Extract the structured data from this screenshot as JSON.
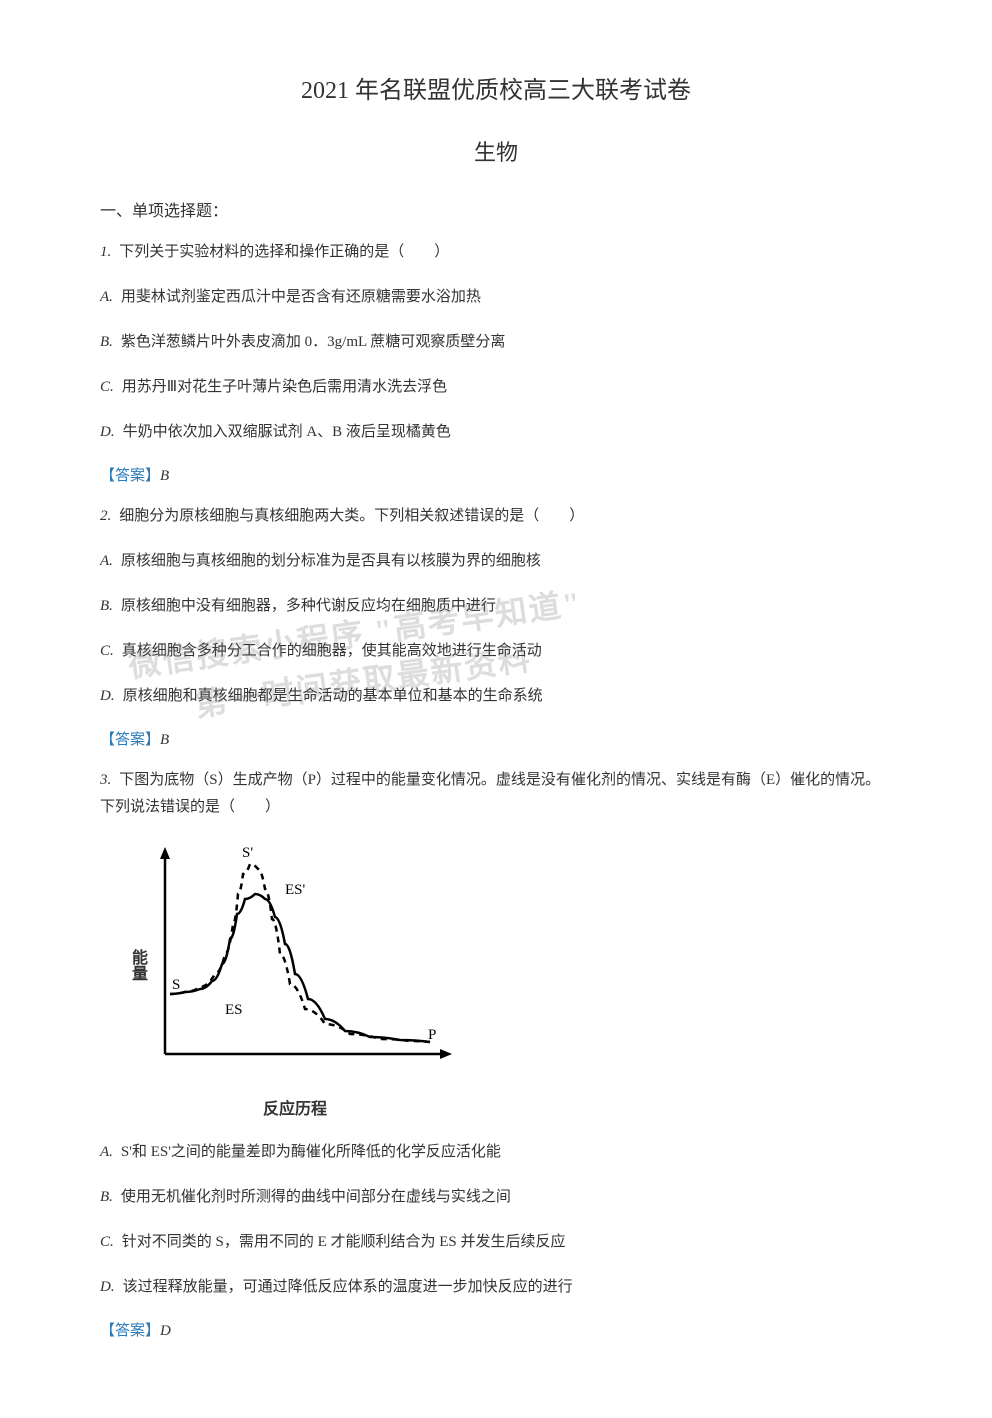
{
  "title": "2021 年名联盟优质校高三大联考试卷",
  "subject": "生物",
  "section_heading": "一、单项选择题：",
  "q1": {
    "num": "1.",
    "text": "下列关于实验材料的选择和操作正确的是（　　）",
    "optA_label": "A.",
    "optA": "用斐林试剂鉴定西瓜汁中是否含有还原糖需要水浴加热",
    "optB_label": "B.",
    "optB": "紫色洋葱鳞片叶外表皮滴加 0．3g/mL 蔗糖可观察质壁分离",
    "optC_label": "C.",
    "optC": "用苏丹Ⅲ对花生子叶薄片染色后需用清水洗去浮色",
    "optD_label": "D.",
    "optD": "牛奶中依次加入双缩脲试剂 A、B 液后呈现橘黄色",
    "answer_label": "【答案】",
    "answer": "B"
  },
  "q2": {
    "num": "2.",
    "text": "细胞分为原核细胞与真核细胞两大类。下列相关叙述错误的是（　　）",
    "optA_label": "A.",
    "optA": "原核细胞与真核细胞的划分标准为是否具有以核膜为界的细胞核",
    "optB_label": "B.",
    "optB": "原核细胞中没有细胞器，多种代谢反应均在细胞质中进行",
    "optC_label": "C.",
    "optC": "真核细胞含多种分工合作的细胞器，使其能高效地进行生命活动",
    "optD_label": "D.",
    "optD": "原核细胞和真核细胞都是生命活动的基本单位和基本的生命系统",
    "answer_label": "【答案】",
    "answer": "B"
  },
  "q3": {
    "num": "3.",
    "text": "下图为底物（S）生成产物（P）过程中的能量变化情况。虚线是没有催化剂的情况、实线是有酶（E）催化的情况。下列说法错误的是（　　）",
    "optA_label": "A.",
    "optA": "S'和 ES'之间的能量差即为酶催化所降低的化学反应活化能",
    "optB_label": "B.",
    "optB": "使用无机催化剂时所测得的曲线中间部分在虚线与实线之间",
    "optC_label": "C.",
    "optC": "针对不同类的 S，需用不同的 E 才能顺利结合为 ES 并发生后续反应",
    "optD_label": "D.",
    "optD": "该过程释放能量，可通过降低反应体系的温度进一步加快反应的进行",
    "answer_label": "【答案】",
    "answer": "D",
    "chart": {
      "type": "line",
      "xlabel": "反应历程",
      "ylabel": "能量",
      "background_color": "#ffffff",
      "axis_color": "#000000",
      "line_width": 2.5,
      "label_S": "S",
      "label_Sprime": "S'",
      "label_ES": "ES",
      "label_ESprime": "ES'",
      "label_P": "P",
      "dashed_curve": {
        "stroke": "#000000",
        "dash": "6,5",
        "points": [
          [
            40,
            155
          ],
          [
            55,
            153
          ],
          [
            70,
            148
          ],
          [
            85,
            135
          ],
          [
            95,
            115
          ],
          [
            103,
            85
          ],
          [
            108,
            55
          ],
          [
            113,
            35
          ],
          [
            120,
            25
          ],
          [
            128,
            30
          ],
          [
            135,
            50
          ],
          [
            142,
            80
          ],
          [
            150,
            115
          ],
          [
            160,
            145
          ],
          [
            175,
            170
          ],
          [
            195,
            185
          ],
          [
            220,
            195
          ],
          [
            250,
            200
          ],
          [
            280,
            202
          ],
          [
            300,
            203
          ]
        ]
      },
      "solid_curve": {
        "stroke": "#000000",
        "points": [
          [
            40,
            155
          ],
          [
            55,
            153
          ],
          [
            70,
            150
          ],
          [
            82,
            142
          ],
          [
            92,
            125
          ],
          [
            100,
            100
          ],
          [
            107,
            75
          ],
          [
            115,
            60
          ],
          [
            125,
            55
          ],
          [
            135,
            60
          ],
          [
            145,
            78
          ],
          [
            155,
            105
          ],
          [
            165,
            135
          ],
          [
            178,
            160
          ],
          [
            195,
            180
          ],
          [
            215,
            192
          ],
          [
            240,
            198
          ],
          [
            270,
            201
          ],
          [
            300,
            203
          ]
        ]
      }
    }
  },
  "watermark": {
    "line1": "微信搜索小程序 \"高考早知道\"",
    "line2": "第一时间获取最新资料"
  }
}
